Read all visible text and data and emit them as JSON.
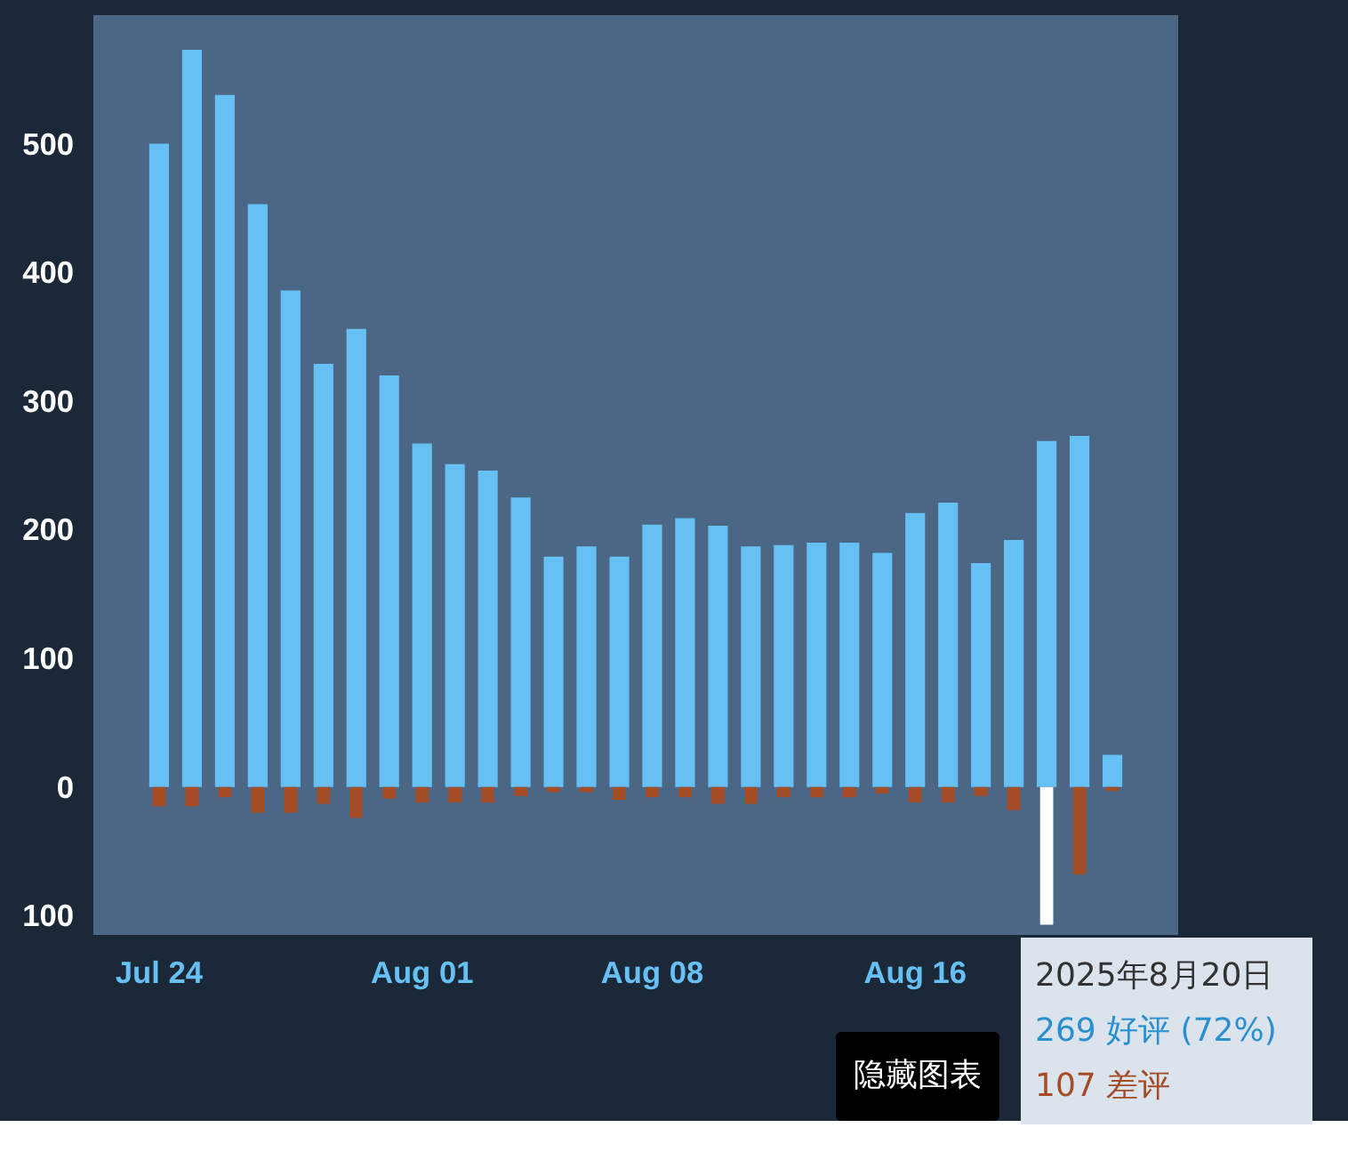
{
  "chart_data": {
    "type": "bar",
    "x": [
      "2025-07-24",
      "2025-07-25",
      "2025-07-26",
      "2025-07-27",
      "2025-07-28",
      "2025-07-29",
      "2025-07-30",
      "2025-07-31",
      "2025-08-01",
      "2025-08-02",
      "2025-08-03",
      "2025-08-04",
      "2025-08-05",
      "2025-08-06",
      "2025-08-07",
      "2025-08-08",
      "2025-08-09",
      "2025-08-10",
      "2025-08-11",
      "2025-08-12",
      "2025-08-13",
      "2025-08-14",
      "2025-08-15",
      "2025-08-16",
      "2025-08-17",
      "2025-08-18",
      "2025-08-19",
      "2025-08-20",
      "2025-08-21",
      "2025-08-22"
    ],
    "series": [
      {
        "color": "#66c0f4",
        "values": [
          500,
          573,
          538,
          453,
          386,
          329,
          356,
          320,
          267,
          251,
          246,
          225,
          179,
          187,
          179,
          204,
          209,
          203,
          187,
          188,
          190,
          190,
          182,
          213,
          221,
          174,
          192,
          269,
          273,
          25
        ]
      },
      {
        "color": "#a34c25",
        "colors": [
          "#a34c25",
          "#a34c25",
          "#a34c25",
          "#a34c25",
          "#a34c25",
          "#a34c25",
          "#a34c25",
          "#a34c25",
          "#a34c25",
          "#a34c25",
          "#a34c25",
          "#a34c25",
          "#a34c25",
          "#a34c25",
          "#a34c25",
          "#a34c25",
          "#a34c25",
          "#a34c25",
          "#a34c25",
          "#a34c25",
          "#a34c25",
          "#a34c25",
          "#a34c25",
          "#a34c25",
          "#a34c25",
          "#a34c25",
          "#a34c25",
          "#ffffff",
          "#a34c25",
          "#a34c25"
        ],
        "values": [
          -15,
          -15,
          -8,
          -20,
          -20,
          -13,
          -24,
          -9,
          -12,
          -12,
          -12,
          -7,
          -4,
          -4,
          -10,
          -8,
          -8,
          -13,
          -13,
          -8,
          -8,
          -8,
          -5,
          -12,
          -12,
          -7,
          -18,
          -107,
          -68,
          -3
        ]
      }
    ],
    "xlim": [
      "2025-07-22",
      "2025-08-24"
    ],
    "xticks": [
      {
        "value": "2025-07-24",
        "label": "Jul 24"
      },
      {
        "value": "2025-08-01",
        "label": "Aug 01"
      },
      {
        "value": "2025-08-08",
        "label": "Aug 08"
      },
      {
        "value": "2025-08-16",
        "label": "Aug 16"
      }
    ],
    "ylim": [
      -115,
      600
    ],
    "yticks": [
      {
        "value": -100,
        "label": "100"
      },
      0,
      100,
      200,
      300,
      400,
      500
    ],
    "grid": false,
    "annotations": [
      "2025年8月20日",
      "269 好评 (72%)",
      "107 差评",
      "隐藏图表"
    ]
  }
}
